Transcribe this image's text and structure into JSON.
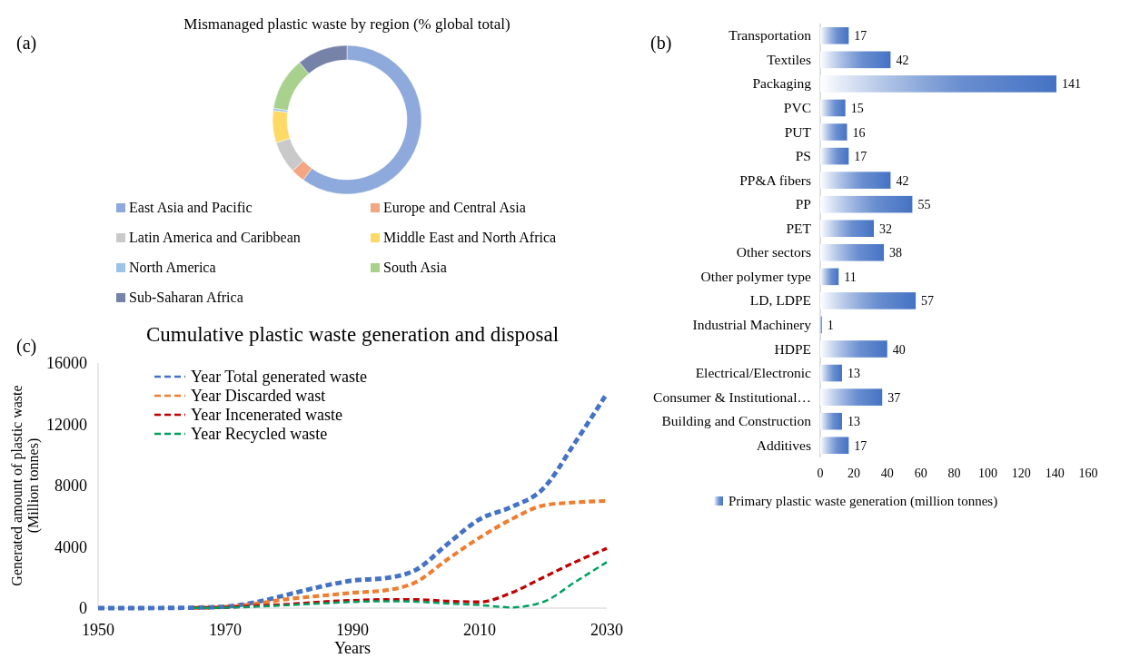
{
  "chart_data": [
    {
      "type": "donut",
      "title": "Mismanaged plastic waste by region (% global total)",
      "annotations": [
        "(a)"
      ],
      "legend": "bottom",
      "categories": [
        "East Asia and Pacific",
        "Europe and Central Asia",
        "Latin America and Caribbean",
        "Middle East and North Africa",
        "North America",
        "South Asia",
        "Sub-Saharan Africa"
      ],
      "values": [
        60,
        3,
        7,
        7,
        0.5,
        11.5,
        11
      ],
      "colors": [
        "#8ea9db",
        "#f4a582",
        "#c9c9c9",
        "#ffd966",
        "#9dc3e6",
        "#a9d18e",
        "#7682a8"
      ]
    },
    {
      "type": "bar",
      "orientation": "horizontal",
      "annotations": [
        "(b)"
      ],
      "legend": "bottom",
      "data_labels": true,
      "grid": false,
      "categories": [
        "Transportation",
        "Textiles",
        "Packaging",
        "PVC",
        "PUT",
        "PS",
        "PP&A fibers",
        "PP",
        "PET",
        "Other sectors",
        "Other polymer type",
        "LD, LDPE",
        "Industrial Machinery",
        "HDPE",
        "Electrical/Electronic",
        "Consumer & Institutional…",
        "Building and Construction",
        "Additives"
      ],
      "series": [
        {
          "name": "Primary plastic waste generation (million tonnes)",
          "color": "#4472c4",
          "values": [
            17,
            42,
            141,
            15,
            16,
            17,
            42,
            55,
            32,
            38,
            11,
            57,
            1,
            40,
            13,
            37,
            13,
            17
          ]
        }
      ],
      "xlim": [
        0,
        160
      ],
      "xticks": [
        0,
        20,
        40,
        60,
        80,
        100,
        120,
        140,
        160
      ]
    },
    {
      "type": "line",
      "title": "Cumulative plastic waste generation and disposal",
      "annotations": [
        "(c)"
      ],
      "xlabel": "Years",
      "ylabel": "Generated amount of plastic waste (Million tonnes)",
      "legend": "top left",
      "line_style": "dashed",
      "grid": false,
      "x": [
        1950,
        1955,
        1960,
        1965,
        1970,
        1975,
        1980,
        1985,
        1990,
        1995,
        2000,
        2005,
        2010,
        2015,
        2020,
        2025,
        2030
      ],
      "series": [
        {
          "name": "Year Total generated waste",
          "color": "#4472c4",
          "values": [
            0,
            0,
            10,
            30,
            100,
            400,
            900,
            1400,
            1800,
            1950,
            2500,
            4200,
            5800,
            6600,
            7800,
            10800,
            14000
          ]
        },
        {
          "name": "Year Discarded wast",
          "color": "#ed7d31",
          "x": [
            1965,
            1970,
            1975,
            1980,
            1985,
            1990,
            1995,
            2000,
            2005,
            2010,
            2015,
            2020,
            2025,
            2030
          ],
          "values": [
            20,
            80,
            300,
            600,
            800,
            1000,
            1150,
            1700,
            3200,
            4600,
            5800,
            6700,
            6900,
            7000
          ]
        },
        {
          "name": "Year Incenerated waste",
          "color": "#c00000",
          "x": [
            1965,
            1970,
            1975,
            1980,
            1985,
            1990,
            1995,
            2000,
            2005,
            2010,
            2015,
            2020,
            2025,
            2030
          ],
          "values": [
            20,
            50,
            150,
            250,
            400,
            500,
            550,
            550,
            450,
            400,
            1000,
            2000,
            3000,
            3900
          ]
        },
        {
          "name": "Year Recycled waste",
          "color": "#00a060",
          "x": [
            1965,
            1970,
            1975,
            1980,
            1985,
            1990,
            1995,
            2000,
            2005,
            2010,
            2015,
            2020,
            2025,
            2030
          ],
          "values": [
            10,
            30,
            100,
            200,
            300,
            400,
            450,
            420,
            300,
            200,
            50,
            400,
            1700,
            3000
          ]
        }
      ],
      "xlim": [
        1950,
        2030
      ],
      "xticks": [
        1950,
        1970,
        1990,
        2010,
        2030
      ],
      "ylim": [
        0,
        16000
      ],
      "yticks": [
        0,
        4000,
        8000,
        12000,
        16000
      ]
    }
  ]
}
